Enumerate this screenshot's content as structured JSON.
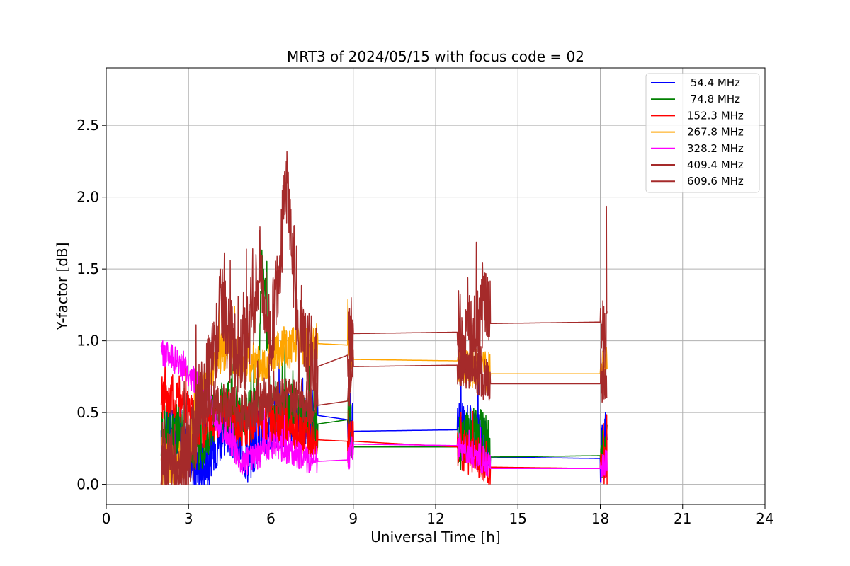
{
  "chart_data": {
    "type": "line",
    "title": "MRT3 of 2024/05/15 with focus code = 02",
    "xlabel": "Universal Time [h]",
    "ylabel": "Y-factor [dB]",
    "xlim": [
      0,
      24
    ],
    "ylim": [
      -0.14,
      2.9
    ],
    "xticks": [
      0,
      3,
      6,
      9,
      12,
      15,
      18,
      21,
      24
    ],
    "xtick_labels": [
      "0",
      "3",
      "6",
      "9",
      "12",
      "15",
      "18",
      "21",
      "24"
    ],
    "yticks": [
      0.0,
      0.5,
      1.0,
      1.5,
      2.0,
      2.5
    ],
    "ytick_labels": [
      "0.0",
      "0.5",
      "1.0",
      "1.5",
      "2.0",
      "2.5"
    ],
    "grid": true,
    "legend_position": "top-right",
    "segments": [
      [
        2.0,
        7.7
      ],
      [
        8.8,
        9.0
      ],
      [
        12.8,
        14.0
      ],
      [
        18.0,
        18.25
      ]
    ],
    "series": [
      {
        "name": " 54.4 MHz",
        "color": "#0000ff",
        "points": [
          [
            2.0,
            0.22
          ],
          [
            2.3,
            0.35
          ],
          [
            2.6,
            0.3
          ],
          [
            3.0,
            0.2
          ],
          [
            3.3,
            0.15
          ],
          [
            3.6,
            0.1
          ],
          [
            4.0,
            0.3
          ],
          [
            4.4,
            0.42
          ],
          [
            4.8,
            0.3
          ],
          [
            5.2,
            0.2
          ],
          [
            5.6,
            0.35
          ],
          [
            6.0,
            0.4
          ],
          [
            6.5,
            0.45
          ],
          [
            7.0,
            0.45
          ],
          [
            7.7,
            0.48
          ],
          [
            8.8,
            0.45
          ],
          [
            9.0,
            0.37
          ],
          [
            12.8,
            0.38
          ],
          [
            13.3,
            0.35
          ],
          [
            13.9,
            0.25
          ],
          [
            14.0,
            0.19
          ],
          [
            18.0,
            0.18
          ],
          [
            18.25,
            0.38
          ]
        ],
        "amplitude": 0.2
      },
      {
        "name": " 74.8 MHz",
        "color": "#008000",
        "points": [
          [
            2.0,
            0.35
          ],
          [
            2.5,
            0.4
          ],
          [
            3.0,
            0.3
          ],
          [
            3.5,
            0.3
          ],
          [
            4.0,
            0.5
          ],
          [
            4.5,
            0.55
          ],
          [
            5.0,
            0.45
          ],
          [
            5.5,
            0.55
          ],
          [
            5.7,
            1.6
          ],
          [
            6.0,
            0.5
          ],
          [
            6.5,
            0.55
          ],
          [
            7.0,
            0.45
          ],
          [
            7.7,
            0.42
          ],
          [
            8.8,
            0.45
          ],
          [
            9.0,
            0.26
          ],
          [
            12.8,
            0.26
          ],
          [
            13.3,
            0.35
          ],
          [
            13.9,
            0.3
          ],
          [
            14.0,
            0.19
          ],
          [
            18.0,
            0.2
          ],
          [
            18.25,
            0.3
          ]
        ],
        "amplitude": 0.2
      },
      {
        "name": "152.3 MHz",
        "color": "#ff0000",
        "points": [
          [
            2.0,
            0.6
          ],
          [
            2.4,
            0.62
          ],
          [
            2.8,
            0.55
          ],
          [
            3.2,
            0.45
          ],
          [
            3.5,
            0.38
          ],
          [
            3.8,
            0.42
          ],
          [
            4.2,
            0.5
          ],
          [
            4.6,
            0.45
          ],
          [
            5.0,
            0.38
          ],
          [
            5.5,
            0.45
          ],
          [
            6.0,
            0.45
          ],
          [
            6.5,
            0.4
          ],
          [
            7.0,
            0.35
          ],
          [
            7.7,
            0.31
          ],
          [
            8.8,
            0.3
          ],
          [
            9.0,
            0.3
          ],
          [
            12.8,
            0.26
          ],
          [
            13.3,
            0.2
          ],
          [
            13.9,
            0.15
          ],
          [
            14.0,
            0.12
          ],
          [
            18.0,
            0.11
          ],
          [
            18.25,
            0.05
          ]
        ],
        "amplitude": 0.15
      },
      {
        "name": "267.8 MHz",
        "color": "#ffa500",
        "points": [
          [
            2.0,
            0.15
          ],
          [
            2.5,
            0.12
          ],
          [
            3.0,
            0.25
          ],
          [
            3.5,
            0.6
          ],
          [
            4.0,
            0.9
          ],
          [
            4.5,
            0.95
          ],
          [
            5.0,
            0.85
          ],
          [
            5.5,
            0.85
          ],
          [
            6.0,
            0.9
          ],
          [
            6.5,
            0.95
          ],
          [
            7.0,
            0.95
          ],
          [
            7.7,
            0.98
          ],
          [
            8.8,
            0.97
          ],
          [
            9.0,
            0.87
          ],
          [
            12.8,
            0.86
          ],
          [
            13.3,
            0.82
          ],
          [
            13.9,
            0.78
          ],
          [
            14.0,
            0.77
          ],
          [
            18.0,
            0.77
          ],
          [
            18.25,
            0.85
          ]
        ],
        "amplitude": 0.15
      },
      {
        "name": "328.2 MHz",
        "color": "#ff00ff",
        "points": [
          [
            2.0,
            0.9
          ],
          [
            2.4,
            0.88
          ],
          [
            2.8,
            0.82
          ],
          [
            3.2,
            0.72
          ],
          [
            3.6,
            0.62
          ],
          [
            4.0,
            0.45
          ],
          [
            4.5,
            0.3
          ],
          [
            5.0,
            0.15
          ],
          [
            5.5,
            0.2
          ],
          [
            6.0,
            0.28
          ],
          [
            6.5,
            0.25
          ],
          [
            7.0,
            0.2
          ],
          [
            7.7,
            0.16
          ],
          [
            8.8,
            0.17
          ],
          [
            9.0,
            0.28
          ],
          [
            12.8,
            0.27
          ],
          [
            13.3,
            0.22
          ],
          [
            13.9,
            0.15
          ],
          [
            14.0,
            0.11
          ],
          [
            18.0,
            0.11
          ],
          [
            18.25,
            0.15
          ]
        ],
        "amplitude": 0.1
      },
      {
        "name": "409.4 MHz",
        "color": "#a52a2a",
        "points": [
          [
            2.0,
            0.15
          ],
          [
            2.5,
            0.12
          ],
          [
            3.0,
            0.2
          ],
          [
            3.5,
            0.55
          ],
          [
            4.0,
            0.55
          ],
          [
            4.5,
            0.55
          ],
          [
            5.0,
            0.5
          ],
          [
            5.5,
            0.55
          ],
          [
            6.0,
            0.6
          ],
          [
            6.5,
            0.6
          ],
          [
            7.0,
            0.58
          ],
          [
            7.7,
            0.55
          ],
          [
            8.8,
            0.58
          ],
          [
            9.0,
            0.82
          ],
          [
            12.8,
            0.83
          ],
          [
            13.3,
            0.8
          ],
          [
            13.9,
            0.72
          ],
          [
            14.0,
            0.7
          ],
          [
            18.0,
            0.7
          ],
          [
            18.25,
            0.75
          ]
        ],
        "amplitude": 0.15
      },
      {
        "name": "609.6 MHz",
        "color": "#a52a2a",
        "points": [
          [
            2.0,
            0.15
          ],
          [
            2.5,
            0.12
          ],
          [
            3.0,
            0.18
          ],
          [
            3.5,
            0.6
          ],
          [
            4.0,
            0.95
          ],
          [
            4.2,
            1.3
          ],
          [
            4.5,
            1.0
          ],
          [
            5.0,
            0.9
          ],
          [
            5.6,
            1.5
          ],
          [
            6.0,
            1.0
          ],
          [
            6.6,
            2.1
          ],
          [
            7.0,
            1.0
          ],
          [
            7.7,
            0.82
          ],
          [
            8.8,
            0.9
          ],
          [
            9.0,
            1.05
          ],
          [
            12.8,
            1.06
          ],
          [
            13.3,
            1.0
          ],
          [
            13.8,
            1.3
          ],
          [
            14.0,
            1.12
          ],
          [
            18.0,
            1.13
          ],
          [
            18.25,
            1.0
          ]
        ],
        "amplitude": 0.3
      }
    ]
  }
}
